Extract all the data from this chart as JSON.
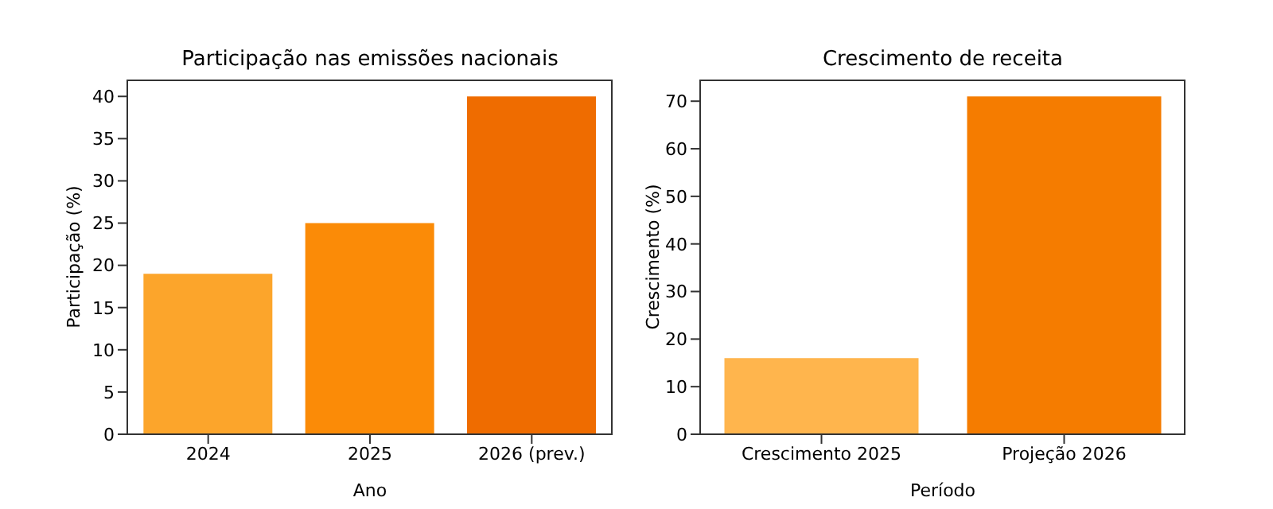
{
  "chart_data": [
    {
      "type": "bar",
      "title": "Participação nas emissões nacionais",
      "xlabel": "Ano",
      "ylabel": "Participação (%)",
      "categories": [
        "2024",
        "2025",
        "2026 (prev.)"
      ],
      "values": [
        19,
        25,
        40
      ],
      "colors": [
        "#fca52b",
        "#fb8b07",
        "#ef6c00"
      ],
      "ylim": [
        0,
        42
      ],
      "yticks": [
        0,
        5,
        10,
        15,
        20,
        25,
        30,
        35,
        40
      ],
      "grid": false,
      "legend": false
    },
    {
      "type": "bar",
      "title": "Crescimento de receita",
      "xlabel": "Período",
      "ylabel": "Crescimento (%)",
      "categories": [
        "Crescimento 2025",
        "Projeção 2026"
      ],
      "values": [
        16,
        71
      ],
      "colors": [
        "#ffb54d",
        "#f57c00"
      ],
      "ylim": [
        0,
        74.55
      ],
      "yticks": [
        0,
        10,
        20,
        30,
        40,
        50,
        60,
        70
      ],
      "grid": false,
      "legend": false
    }
  ]
}
